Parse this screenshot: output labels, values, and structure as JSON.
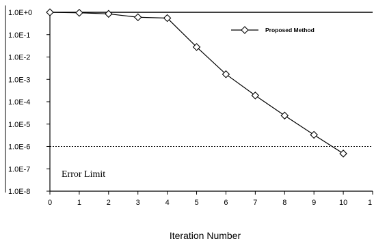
{
  "chart_data": {
    "type": "line",
    "xlabel": "Iteration Number",
    "ylabel": "",
    "xlim": [
      0,
      11
    ],
    "x_ticks": [
      "0",
      "1",
      "2",
      "3",
      "4",
      "5",
      "6",
      "7",
      "8",
      "9",
      "10",
      "1"
    ],
    "y_scale": "log",
    "ylim": [
      1e-08,
      1
    ],
    "y_ticks": [
      "1.0E+0",
      "1.0E-1",
      "1.0E-2",
      "1.0E-3",
      "1.0E-4",
      "1.0E-5",
      "1.0E-6",
      "1.0E-7",
      "1.0E-8"
    ],
    "grid": false,
    "series": [
      {
        "name": "Proposed Method",
        "marker": "diamond",
        "x": [
          0,
          1,
          2,
          3,
          4,
          5,
          6,
          7,
          8,
          9,
          10
        ],
        "y": [
          1.0,
          0.95,
          0.85,
          0.6,
          0.55,
          0.028,
          0.0017,
          0.00019,
          2.4e-05,
          3.3e-06,
          4.8e-07
        ]
      }
    ],
    "legend": {
      "position": "top-right",
      "entries": [
        "Proposed Method"
      ]
    },
    "reference_line": {
      "label": "Error Limit",
      "y": 1e-06,
      "style": "dotted"
    },
    "top_line": {
      "y": 1.0,
      "style": "solid"
    }
  }
}
